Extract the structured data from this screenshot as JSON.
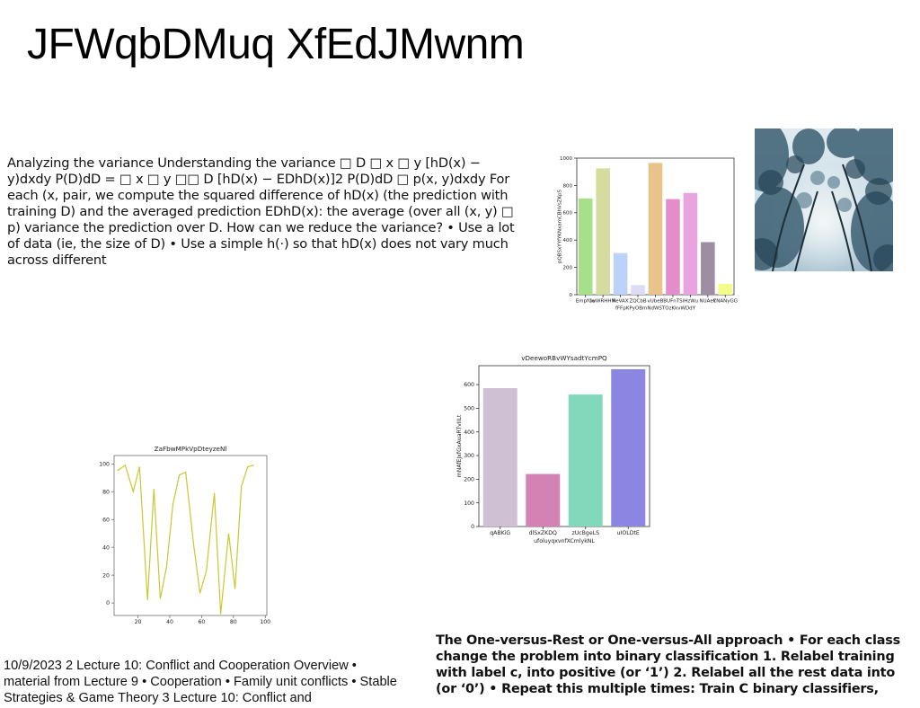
{
  "slide": {
    "title": "JFWqbDMuq XfEdJMwnm",
    "body_text": "Analyzing the variance Understanding the variance □ D □ x □ y [hD(x) − y)dxdy P(D)dD = □ x □ y □□ D [hD(x) − EDhD(x)]2 P(D)dD □ p(x, y)dxdy For each (x, pair, we compute the squared difference of hD(x) (the prediction with training D) and the averaged prediction EDhD(x): the average (over all (x, y) □ p) variance the prediction over D. How can we reduce the variance? • Use a lot of data (ie, the size of D) • Use a simple h(·) so that hD(x) does not vary much across different",
    "bottom_left_text": "10/9/2023 2 Lecture 10: Conflict and Cooperation Overview • material from Lecture 9 • Cooperation • Family unit conflicts • Stable Strategies & Game Theory 3 Lecture 10: Conflict and",
    "bottom_right_text": "The One-versus-Rest or One-versus-All approach • For each class change the problem into binary classification 1. Relabel training with label c, into positive (or ‘1’) 2. Relabel all the rest data into (or ‘0’) • Repeat this multiple times: Train C binary classifiers,",
    "photo": "trees-photo"
  },
  "chart_data": [
    {
      "type": "bar",
      "title": "",
      "xlabel": "fFFpKPyOBmNdWSTOzKkvWDdY",
      "ylabel": "pQBSxYYfYKNxamCBhVsZKpS",
      "ylim": [
        0,
        1000
      ],
      "yticks": [
        0,
        200,
        400,
        600,
        800,
        1000
      ],
      "categories": [
        "EmpfGu",
        "lwWRHHM",
        "ReVAX",
        "ZQCbB",
        "vUbeB",
        "BUFnTS",
        "lHzWu",
        "NUAeY",
        "CNANyGG"
      ],
      "values": [
        705,
        925,
        305,
        70,
        965,
        700,
        745,
        385,
        80
      ],
      "colors": [
        "#a6e08a",
        "#d6dba0",
        "#bcd2fb",
        "#dcdcf6",
        "#e8c48a",
        "#e58dca",
        "#e9a4dd",
        "#9d8ea3",
        "#f3fb8a"
      ]
    },
    {
      "type": "bar",
      "title": "vDeewoRBvWYsadtYcmPQ",
      "xlabel": "ufoluyqxvnfXCmlykNL",
      "ylabel": "mNAfEJxfGxAuaRTvIILt",
      "ylim": [
        0,
        680
      ],
      "yticks": [
        0,
        100,
        200,
        300,
        400,
        500,
        600
      ],
      "categories": [
        "qABKiG",
        "dlSxZKDQ",
        "zUcBgeLS",
        "uIOLDtE"
      ],
      "values": [
        585,
        222,
        558,
        665
      ],
      "colors": [
        "#cfc0d3",
        "#d382b3",
        "#82d8bb",
        "#8b86e1"
      ]
    },
    {
      "type": "line",
      "title": "ZaFbwMPkVpDteyzeNl",
      "xlabel": "",
      "ylabel": "",
      "xlim": [
        5,
        101
      ],
      "ylim": [
        -9,
        106
      ],
      "xticks": [
        20,
        40,
        60,
        80,
        100
      ],
      "yticks": [
        0,
        20,
        40,
        60,
        80,
        100
      ],
      "color": "#c8c832",
      "x": [
        7,
        12,
        17,
        21,
        26,
        30,
        34,
        38,
        42,
        46,
        50,
        55,
        59,
        63,
        68,
        72,
        77,
        81,
        85,
        89,
        93
      ],
      "y": [
        95,
        99,
        80,
        98,
        2,
        82,
        3,
        26,
        71,
        92,
        94,
        42,
        7,
        23,
        79,
        -8,
        50,
        10,
        84,
        98,
        99
      ]
    }
  ]
}
